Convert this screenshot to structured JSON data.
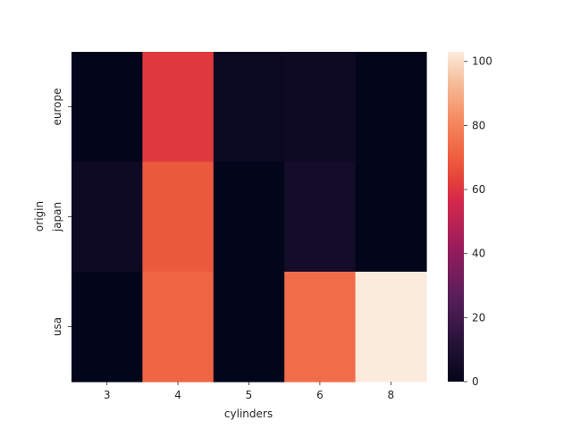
{
  "chart_data": {
    "type": "heatmap",
    "title": "",
    "xlabel": "cylinders",
    "ylabel": "origin",
    "x_categories": [
      "3",
      "4",
      "5",
      "6",
      "8"
    ],
    "y_categories": [
      "europe",
      "japan",
      "usa"
    ],
    "values": [
      [
        0,
        61,
        3,
        4,
        0
      ],
      [
        4,
        69,
        0,
        6,
        0
      ],
      [
        0,
        72,
        0,
        74,
        103
      ]
    ],
    "colorbar": {
      "min": 0,
      "max": 103,
      "ticks": [
        0,
        20,
        40,
        60,
        80,
        100
      ],
      "tick_labels": [
        "0",
        "20",
        "40",
        "60",
        "80",
        "100"
      ]
    },
    "colormap": "rocket",
    "grid": false
  }
}
